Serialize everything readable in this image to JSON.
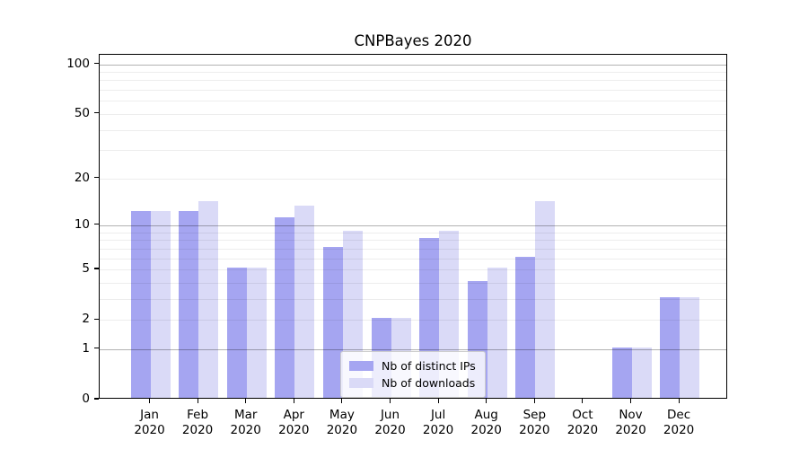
{
  "title": "CNPBayes 2020",
  "chart_data": {
    "type": "bar",
    "title": "CNPBayes 2020",
    "subtitle": "",
    "scale": "log1p",
    "grid": "horizontal log minor+major",
    "months": [
      "Jan",
      "Feb",
      "Mar",
      "Apr",
      "May",
      "Jun",
      "Jul",
      "Aug",
      "Sep",
      "Oct",
      "Nov",
      "Dec"
    ],
    "year": "2020",
    "series": [
      {
        "name": "Nb of distinct IPs",
        "color": "#a5a5f1",
        "values": [
          12,
          12,
          5,
          11,
          7,
          2,
          8,
          4,
          6,
          0,
          1,
          3
        ]
      },
      {
        "name": "Nb of downloads",
        "color": "#dadaf7",
        "values": [
          12,
          14,
          5,
          13,
          9,
          2,
          9,
          5,
          14,
          0,
          1,
          3
        ]
      }
    ],
    "xlabel": "",
    "ylabel": "",
    "y_ticks": [
      0,
      1,
      2,
      5,
      10,
      20,
      50,
      100
    ],
    "y_major_gridlines": [
      1,
      10,
      100
    ],
    "y_minor_gridlines": [
      2,
      3,
      4,
      5,
      6,
      7,
      8,
      9,
      20,
      30,
      40,
      50,
      60,
      70,
      80,
      90
    ],
    "ylim": [
      0,
      114
    ],
    "legend_position": "lower-center-inside"
  }
}
